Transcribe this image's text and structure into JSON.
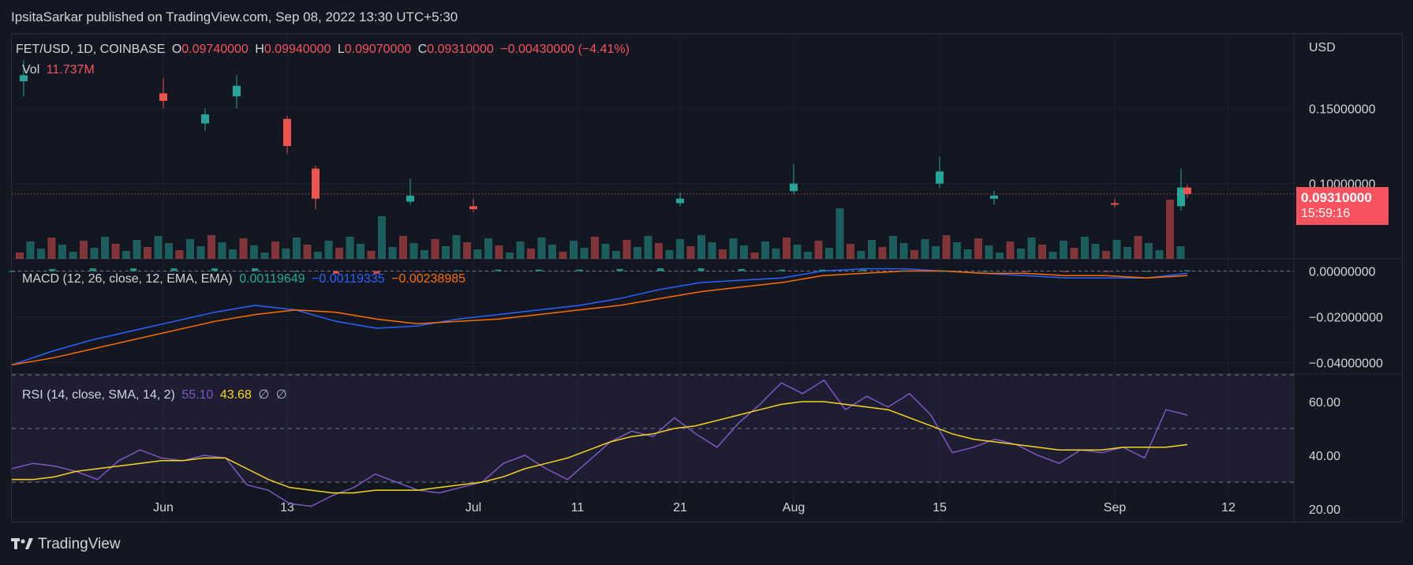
{
  "header": {
    "text": "IpsitaSarkar published on TradingView.com, Sep 08, 2022 13:30 UTC+5:30"
  },
  "legend": {
    "symbol": "FET/USD, 1D, COINBASE",
    "o_label": "O",
    "o": "0.09740000",
    "h_label": "H",
    "h": "0.09940000",
    "l_label": "L",
    "l": "0.09070000",
    "c_label": "C",
    "c": "0.09310000",
    "change": "−0.00430000 (−4.41%)",
    "vol_label": "Vol",
    "vol": "11.737M"
  },
  "macd_legend": {
    "label": "MACD (12, 26, close, 12, EMA, EMA)",
    "hist": "0.00119649",
    "macd": "−0.00119335",
    "signal": "−0.00238985"
  },
  "rsi_legend": {
    "label": "RSI (14, close, SMA, 14, 2)",
    "rsi": "55.10",
    "sma": "43.68",
    "e1": "∅",
    "e2": "∅"
  },
  "price_tag": {
    "price": "0.09310000",
    "countdown": "15:59:16"
  },
  "currency": "USD",
  "brand": "TradingView",
  "colors": {
    "bull": "#26a69a",
    "bear": "#ef5350",
    "macd": "#2962ff",
    "signal": "#ff6d00",
    "rsi": "#7e57c2",
    "rsi_sma": "#f7d51d",
    "background": "#131722"
  },
  "chart_data": [
    {
      "type": "candlestick",
      "title": "FET/USD, 1D, COINBASE",
      "y_ticks": [
        "0.15000000",
        "0.10000000"
      ],
      "ylim": [
        0.05,
        0.2
      ],
      "x_ticks": [
        "Jun",
        "13",
        "Jul",
        "11",
        "21",
        "Aug",
        "15",
        "Sep",
        "12"
      ],
      "last_price": 0.0931,
      "candles": [
        {
          "d": "May 28",
          "o": 0.168,
          "h": 0.182,
          "l": 0.158,
          "c": 0.172
        },
        {
          "d": "Jun 1",
          "o": 0.16,
          "h": 0.17,
          "l": 0.15,
          "c": 0.155
        },
        {
          "d": "Jun 6",
          "o": 0.14,
          "h": 0.15,
          "l": 0.135,
          "c": 0.146
        },
        {
          "d": "Jun 9",
          "o": 0.158,
          "h": 0.172,
          "l": 0.15,
          "c": 0.165
        },
        {
          "d": "Jun 13",
          "o": 0.143,
          "h": 0.145,
          "l": 0.12,
          "c": 0.125
        },
        {
          "d": "Jun 16",
          "o": 0.11,
          "h": 0.112,
          "l": 0.083,
          "c": 0.09
        },
        {
          "d": "Jun 25",
          "o": 0.088,
          "h": 0.103,
          "l": 0.086,
          "c": 0.092
        },
        {
          "d": "Jul 5",
          "o": 0.085,
          "h": 0.09,
          "l": 0.081,
          "c": 0.083
        },
        {
          "d": "Jul 20",
          "o": 0.087,
          "h": 0.094,
          "l": 0.085,
          "c": 0.09
        },
        {
          "d": "Aug 1",
          "o": 0.095,
          "h": 0.113,
          "l": 0.093,
          "c": 0.1
        },
        {
          "d": "Aug 15",
          "o": 0.1,
          "h": 0.118,
          "l": 0.097,
          "c": 0.108
        },
        {
          "d": "Aug 22",
          "o": 0.09,
          "h": 0.095,
          "l": 0.086,
          "c": 0.092
        },
        {
          "d": "Sep 1",
          "o": 0.087,
          "h": 0.09,
          "l": 0.084,
          "c": 0.086
        },
        {
          "d": "Sep 7",
          "o": 0.085,
          "h": 0.11,
          "l": 0.082,
          "c": 0.0974
        },
        {
          "d": "Sep 8",
          "o": 0.0974,
          "h": 0.0994,
          "l": 0.0907,
          "c": 0.0931
        }
      ]
    },
    {
      "type": "line",
      "title": "MACD (12, 26, close, 12, EMA, EMA)",
      "y_ticks": [
        "0.00000000",
        "−0.02000000",
        "−0.04000000"
      ],
      "ylim": [
        -0.045,
        0.005
      ],
      "series": [
        {
          "name": "MACD",
          "values": [
            -0.041,
            -0.035,
            -0.03,
            -0.026,
            -0.022,
            -0.018,
            -0.015,
            -0.017,
            -0.022,
            -0.025,
            -0.024,
            -0.021,
            -0.019,
            -0.017,
            -0.015,
            -0.012,
            -0.008,
            -0.005,
            -0.004,
            -0.003,
            0.0,
            0.001,
            0.001,
            0.0,
            -0.001,
            -0.002,
            -0.003,
            -0.003,
            -0.003,
            -0.001
          ]
        },
        {
          "name": "Signal",
          "values": [
            -0.041,
            -0.038,
            -0.034,
            -0.03,
            -0.026,
            -0.022,
            -0.019,
            -0.017,
            -0.018,
            -0.021,
            -0.023,
            -0.022,
            -0.021,
            -0.019,
            -0.017,
            -0.015,
            -0.012,
            -0.009,
            -0.007,
            -0.005,
            -0.002,
            -0.001,
            0.0,
            0.0,
            -0.001,
            -0.001,
            -0.002,
            -0.002,
            -0.003,
            -0.002
          ]
        }
      ]
    },
    {
      "type": "line",
      "title": "RSI (14, close, SMA, 14, 2)",
      "y_ticks": [
        "60.00",
        "40.00",
        "20.00"
      ],
      "ylim": [
        15,
        70
      ],
      "bands": [
        30,
        50,
        70
      ],
      "series": [
        {
          "name": "RSI",
          "values": [
            35,
            37,
            36,
            34,
            31,
            38,
            42,
            39,
            38,
            40,
            39,
            29,
            27,
            22,
            21,
            25,
            28,
            33,
            30,
            27,
            26,
            28,
            30,
            37,
            40,
            35,
            31,
            38,
            45,
            49,
            47,
            54,
            48,
            43,
            52,
            59,
            67,
            63,
            68,
            57,
            62,
            58,
            63,
            55,
            41,
            43,
            46,
            44,
            40,
            37,
            42,
            41,
            43,
            39,
            57,
            55
          ]
        },
        {
          "name": "SMA",
          "values": [
            31,
            31,
            32,
            34,
            35,
            36,
            37,
            38,
            38,
            39,
            39,
            35,
            31,
            28,
            27,
            26,
            26,
            27,
            27,
            27,
            28,
            29,
            30,
            32,
            35,
            37,
            39,
            42,
            45,
            47,
            48,
            50,
            51,
            53,
            55,
            57,
            59,
            60,
            60,
            59,
            58,
            57,
            54,
            51,
            48,
            46,
            45,
            44,
            43,
            42,
            42,
            42,
            43,
            43,
            43,
            44
          ]
        }
      ]
    }
  ]
}
